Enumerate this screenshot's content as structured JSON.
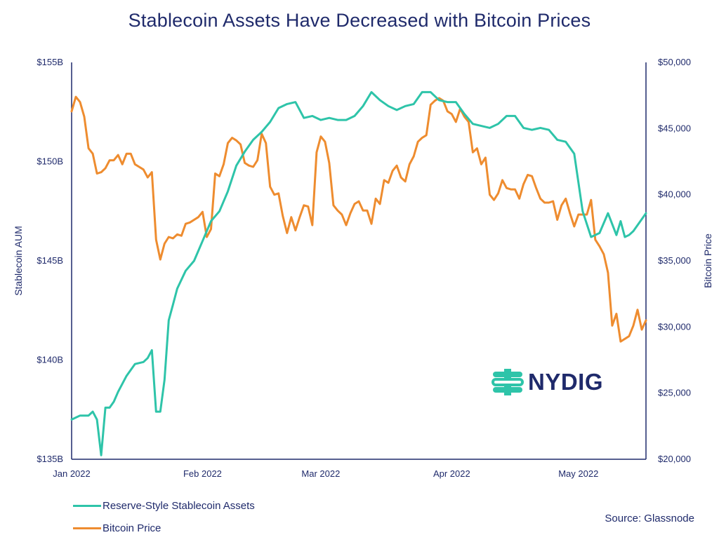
{
  "chart_data": {
    "type": "line",
    "title": "Stablecoin Assets Have Decreased with Bitcoin Prices",
    "y_left": {
      "label": "Stablecoin AUM",
      "range": [
        135,
        155
      ],
      "ticks": [
        135,
        140,
        145,
        150,
        155
      ],
      "tick_labels": [
        "$135B",
        "$140B",
        "$145B",
        "$150B",
        "$155B"
      ]
    },
    "y_right": {
      "label": "Bitcoin Price",
      "range": [
        20000,
        50000
      ],
      "ticks": [
        20000,
        25000,
        30000,
        35000,
        40000,
        45000,
        50000
      ],
      "tick_labels": [
        "$20,000",
        "$25,000",
        "$30,000",
        "$35,000",
        "$40,000",
        "$45,000",
        "$50,000"
      ]
    },
    "x_axis": {
      "type": "date",
      "range": [
        "2022-01-01",
        "2022-05-17"
      ],
      "ticks": [
        "2022-01-01",
        "2022-02-01",
        "2022-03-01",
        "2022-04-01",
        "2022-05-01"
      ],
      "tick_labels": [
        "Jan 2022",
        "Feb 2022",
        "Mar 2022",
        "Apr 2022",
        "May 2022"
      ]
    },
    "grid": false,
    "legend_position": "bottom-left",
    "series": [
      {
        "name": "Reserve-Style Stablecoin Assets",
        "axis": "left",
        "color": "#2ec4a9",
        "x": [
          "2022-01-01",
          "2022-01-03",
          "2022-01-05",
          "2022-01-06",
          "2022-01-07",
          "2022-01-08",
          "2022-01-09",
          "2022-01-10",
          "2022-01-11",
          "2022-01-12",
          "2022-01-14",
          "2022-01-16",
          "2022-01-18",
          "2022-01-19",
          "2022-01-20",
          "2022-01-21",
          "2022-01-22",
          "2022-01-23",
          "2022-01-24",
          "2022-01-25",
          "2022-01-26",
          "2022-01-28",
          "2022-01-30",
          "2022-02-01",
          "2022-02-03",
          "2022-02-05",
          "2022-02-07",
          "2022-02-09",
          "2022-02-11",
          "2022-02-13",
          "2022-02-15",
          "2022-02-17",
          "2022-02-19",
          "2022-02-21",
          "2022-02-23",
          "2022-02-25",
          "2022-02-27",
          "2022-03-01",
          "2022-03-03",
          "2022-03-05",
          "2022-03-07",
          "2022-03-09",
          "2022-03-11",
          "2022-03-13",
          "2022-03-15",
          "2022-03-17",
          "2022-03-19",
          "2022-03-21",
          "2022-03-23",
          "2022-03-25",
          "2022-03-27",
          "2022-03-29",
          "2022-03-31",
          "2022-04-02",
          "2022-04-04",
          "2022-04-06",
          "2022-04-08",
          "2022-04-10",
          "2022-04-12",
          "2022-04-14",
          "2022-04-16",
          "2022-04-18",
          "2022-04-20",
          "2022-04-22",
          "2022-04-24",
          "2022-04-26",
          "2022-04-28",
          "2022-04-30",
          "2022-05-02",
          "2022-05-04",
          "2022-05-06",
          "2022-05-08",
          "2022-05-10",
          "2022-05-11",
          "2022-05-12",
          "2022-05-13",
          "2022-05-14",
          "2022-05-15",
          "2022-05-16",
          "2022-05-17"
        ],
        "values": [
          137.0,
          137.2,
          137.2,
          137.4,
          137.0,
          135.2,
          137.6,
          137.6,
          137.9,
          138.4,
          139.2,
          139.8,
          139.9,
          140.1,
          140.5,
          137.4,
          137.4,
          139.0,
          142.0,
          142.8,
          143.6,
          144.5,
          145.0,
          146.0,
          147.0,
          147.5,
          148.5,
          149.8,
          150.5,
          151.1,
          151.5,
          152.0,
          152.7,
          152.9,
          153.0,
          152.2,
          152.3,
          152.1,
          152.2,
          152.1,
          152.1,
          152.3,
          152.8,
          153.5,
          153.1,
          152.8,
          152.6,
          152.8,
          152.9,
          153.5,
          153.5,
          153.1,
          153.0,
          153.0,
          152.4,
          151.9,
          151.8,
          151.7,
          151.9,
          152.3,
          152.3,
          151.7,
          151.6,
          151.7,
          151.6,
          151.1,
          151.0,
          150.4,
          147.5,
          146.2,
          146.4,
          147.4,
          146.3,
          147.0,
          146.2,
          146.3,
          146.5,
          146.8,
          147.1,
          147.4
        ]
      },
      {
        "name": "Bitcoin Price",
        "axis": "right",
        "color": "#ee8c2f",
        "x": [
          "2022-01-01",
          "2022-01-02",
          "2022-01-03",
          "2022-01-04",
          "2022-01-05",
          "2022-01-06",
          "2022-01-07",
          "2022-01-08",
          "2022-01-09",
          "2022-01-10",
          "2022-01-11",
          "2022-01-12",
          "2022-01-13",
          "2022-01-14",
          "2022-01-15",
          "2022-01-16",
          "2022-01-17",
          "2022-01-18",
          "2022-01-19",
          "2022-01-20",
          "2022-01-21",
          "2022-01-22",
          "2022-01-23",
          "2022-01-24",
          "2022-01-25",
          "2022-01-26",
          "2022-01-27",
          "2022-01-28",
          "2022-01-29",
          "2022-01-30",
          "2022-01-31",
          "2022-02-01",
          "2022-02-02",
          "2022-02-03",
          "2022-02-04",
          "2022-02-05",
          "2022-02-06",
          "2022-02-07",
          "2022-02-08",
          "2022-02-09",
          "2022-02-10",
          "2022-02-11",
          "2022-02-12",
          "2022-02-13",
          "2022-02-14",
          "2022-02-15",
          "2022-02-16",
          "2022-02-17",
          "2022-02-18",
          "2022-02-19",
          "2022-02-20",
          "2022-02-21",
          "2022-02-22",
          "2022-02-23",
          "2022-02-24",
          "2022-02-25",
          "2022-02-26",
          "2022-02-27",
          "2022-02-28",
          "2022-03-01",
          "2022-03-02",
          "2022-03-03",
          "2022-03-04",
          "2022-03-05",
          "2022-03-06",
          "2022-03-07",
          "2022-03-08",
          "2022-03-09",
          "2022-03-10",
          "2022-03-11",
          "2022-03-12",
          "2022-03-13",
          "2022-03-14",
          "2022-03-15",
          "2022-03-16",
          "2022-03-17",
          "2022-03-18",
          "2022-03-19",
          "2022-03-20",
          "2022-03-21",
          "2022-03-22",
          "2022-03-23",
          "2022-03-24",
          "2022-03-25",
          "2022-03-26",
          "2022-03-27",
          "2022-03-28",
          "2022-03-29",
          "2022-03-30",
          "2022-03-31",
          "2022-04-01",
          "2022-04-02",
          "2022-04-03",
          "2022-04-04",
          "2022-04-05",
          "2022-04-06",
          "2022-04-07",
          "2022-04-08",
          "2022-04-09",
          "2022-04-10",
          "2022-04-11",
          "2022-04-12",
          "2022-04-13",
          "2022-04-14",
          "2022-04-15",
          "2022-04-16",
          "2022-04-17",
          "2022-04-18",
          "2022-04-19",
          "2022-04-20",
          "2022-04-21",
          "2022-04-22",
          "2022-04-23",
          "2022-04-24",
          "2022-04-25",
          "2022-04-26",
          "2022-04-27",
          "2022-04-28",
          "2022-04-29",
          "2022-04-30",
          "2022-05-01",
          "2022-05-02",
          "2022-05-03",
          "2022-05-04",
          "2022-05-05",
          "2022-05-06",
          "2022-05-07",
          "2022-05-08",
          "2022-05-09",
          "2022-05-10",
          "2022-05-11",
          "2022-05-12",
          "2022-05-13",
          "2022-05-14",
          "2022-05-15",
          "2022-05-16",
          "2022-05-17"
        ],
        "values": [
          46300,
          47400,
          47000,
          45900,
          43500,
          43100,
          41600,
          41700,
          42000,
          42600,
          42600,
          43000,
          42300,
          43100,
          43100,
          42300,
          42100,
          41900,
          41300,
          41700,
          36600,
          35100,
          36300,
          36800,
          36700,
          37000,
          36900,
          37800,
          37900,
          38100,
          38300,
          38700,
          36800,
          37400,
          41600,
          41400,
          42300,
          43900,
          44300,
          44100,
          43800,
          42400,
          42200,
          42100,
          42600,
          44600,
          43900,
          40600,
          40000,
          40100,
          38400,
          37100,
          38300,
          37300,
          38300,
          39200,
          39100,
          37700,
          43200,
          44400,
          44000,
          42400,
          39200,
          38800,
          38500,
          37700,
          38600,
          39300,
          39500,
          38800,
          38800,
          37800,
          39700,
          39300,
          41100,
          40900,
          41800,
          42200,
          41300,
          41000,
          42300,
          42900,
          44000,
          44300,
          44500,
          46800,
          47100,
          47300,
          47100,
          46300,
          46100,
          45500,
          46500,
          45900,
          45500,
          43200,
          43500,
          42300,
          42800,
          40000,
          39600,
          40100,
          41100,
          40500,
          40400,
          40400,
          39700,
          40800,
          41500,
          41400,
          40500,
          39700,
          39400,
          39400,
          39500,
          38100,
          39200,
          39700,
          38600,
          37600,
          38500,
          38500,
          38500,
          39600,
          36600,
          36100,
          35500,
          34100,
          30100,
          31000,
          28900,
          29100,
          29300,
          30100,
          31300,
          29800,
          30500
        ]
      }
    ],
    "legend": [
      {
        "name": "Reserve-Style Stablecoin Assets",
        "color": "#2ec4a9"
      },
      {
        "name": "Bitcoin Price",
        "color": "#ee8c2f"
      }
    ]
  },
  "source": "Source: Glassnode",
  "logo": {
    "text": "NYDIG",
    "icon": "nydig-logo-icon",
    "icon_color": "#2ec4a9"
  }
}
